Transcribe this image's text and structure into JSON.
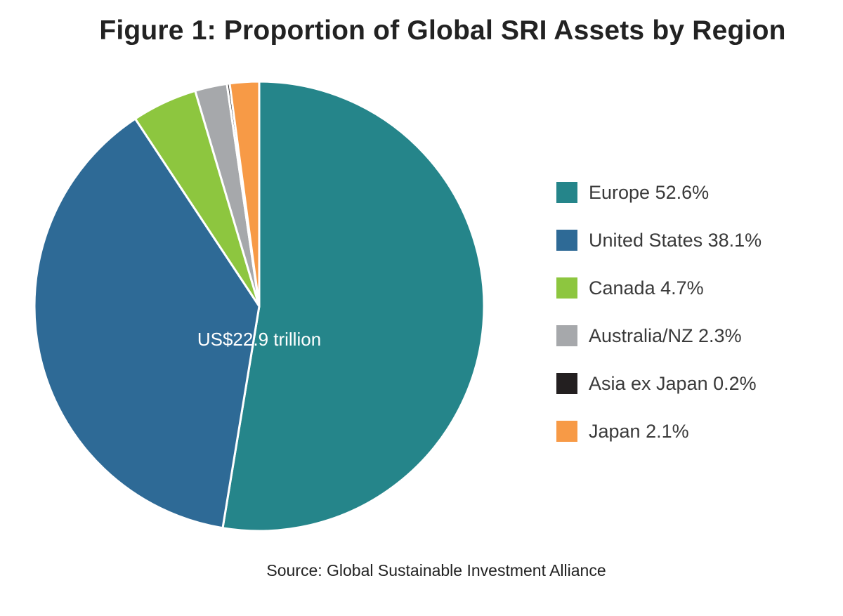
{
  "chart_data": {
    "type": "pie",
    "title": "Figure 1: Proportion of Global SRI Assets by Region",
    "center_label": "US$22.9 trillion",
    "source": "Source: Global Sustainable Investment Alliance",
    "legend_placement": "right",
    "slices": [
      {
        "label": "Europe 52.6%",
        "value": 52.6,
        "color": "#25858A"
      },
      {
        "label": "United States 38.1%",
        "value": 38.1,
        "color": "#2E6A96"
      },
      {
        "label": "Canada 4.7%",
        "value": 4.7,
        "color": "#8DC63F"
      },
      {
        "label": "Australia/NZ 2.3%",
        "value": 2.3,
        "color": "#A6A8AB"
      },
      {
        "label": "Asia ex Japan 0.2%",
        "value": 0.2,
        "color": "#231F20"
      },
      {
        "label": "Japan 2.1%",
        "value": 2.1,
        "color": "#F79A46"
      }
    ]
  }
}
